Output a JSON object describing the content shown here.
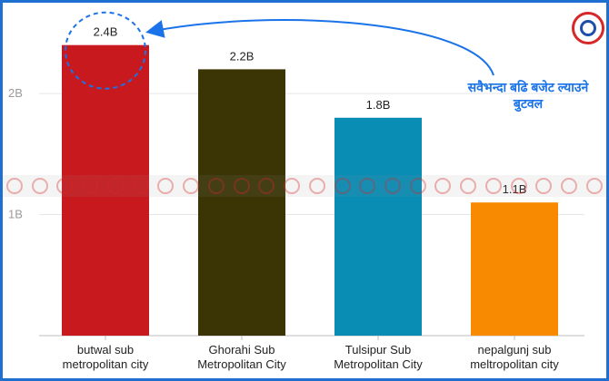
{
  "chart_data": {
    "type": "bar",
    "categories": [
      [
        "butwal sub",
        "metropolitan city"
      ],
      [
        "Ghorahi Sub",
        "Metropolitan City"
      ],
      [
        "Tulsipur Sub",
        "Metropolitan City"
      ],
      [
        "nepalgunj sub",
        "meltropolitan city"
      ]
    ],
    "values": [
      2.4,
      2.2,
      1.8,
      1.1
    ],
    "data_labels": [
      "2.4B",
      "2.2B",
      "1.8B",
      "1.1B"
    ],
    "colors": [
      "#c8191f",
      "#3b3506",
      "#0a8db5",
      "#f78a00"
    ],
    "y_ticks": [
      1,
      2
    ],
    "y_tick_labels": [
      "1B",
      "2B"
    ],
    "ylim": [
      0,
      2.6
    ],
    "grid": true,
    "title": "",
    "xlabel": "",
    "ylabel": ""
  },
  "annotation": {
    "lines": [
      "सवैभन्दा बढि बजेट ल्याउने",
      "बुटवल"
    ],
    "color": "#1a73e8",
    "highlight_bar": 0
  },
  "frame_color": "#1f6fd1",
  "logo_icon": "circular-logo-icon"
}
